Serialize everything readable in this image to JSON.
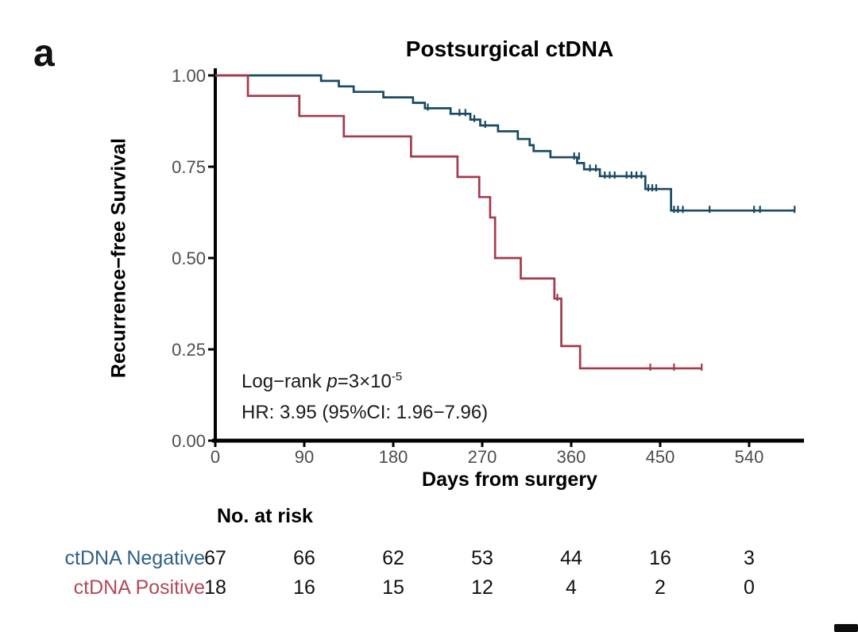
{
  "panel_label": "a",
  "chart_data": {
    "type": "line",
    "subtype": "kaplan-meier-step-curve",
    "title": "Postsurgical ctDNA",
    "xlabel": "Days from surgery",
    "ylabel": "Recurrence−free Survival",
    "xlim": [
      0,
      595
    ],
    "ylim": [
      0,
      1
    ],
    "xticks": [
      0,
      90,
      180,
      270,
      360,
      450,
      540
    ],
    "ytick_values": [
      1.0,
      0.75,
      0.5,
      0.25,
      0.0
    ],
    "ytick_labels": [
      "1.00",
      "0.75",
      "0.50",
      "0.25",
      "0.00"
    ],
    "grid": false,
    "legend_position": "none",
    "annotations": {
      "logrank_prefix": "Log−rank ",
      "logrank_p": "p",
      "logrank_value": "=3×10",
      "logrank_exponent": "-5",
      "hr_text": "HR: 3.95 (95%CI: 1.96−7.96)"
    },
    "series": [
      {
        "name": "ctDNA Negative",
        "color": "#1a4a63",
        "n_initial": 67,
        "start": [
          0,
          1.0
        ],
        "end_day": 586,
        "steps": [
          [
            107,
            0.985
          ],
          [
            125,
            0.97
          ],
          [
            140,
            0.955
          ],
          [
            170,
            0.94
          ],
          [
            200,
            0.925
          ],
          [
            212,
            0.91
          ],
          [
            238,
            0.895
          ],
          [
            258,
            0.879
          ],
          [
            268,
            0.863
          ],
          [
            286,
            0.847
          ],
          [
            306,
            0.826
          ],
          [
            318,
            0.809
          ],
          [
            322,
            0.793
          ],
          [
            339,
            0.776
          ],
          [
            366,
            0.76
          ],
          [
            373,
            0.743
          ],
          [
            389,
            0.724
          ],
          [
            435,
            0.689
          ],
          [
            461,
            0.63
          ]
        ],
        "censors": [
          [
            215,
            0.91
          ],
          [
            247,
            0.895
          ],
          [
            253,
            0.895
          ],
          [
            262,
            0.879
          ],
          [
            273,
            0.863
          ],
          [
            363,
            0.776
          ],
          [
            368,
            0.776
          ],
          [
            379,
            0.743
          ],
          [
            385,
            0.743
          ],
          [
            394,
            0.724
          ],
          [
            399,
            0.724
          ],
          [
            404,
            0.724
          ],
          [
            416,
            0.724
          ],
          [
            421,
            0.724
          ],
          [
            426,
            0.724
          ],
          [
            431,
            0.724
          ],
          [
            438,
            0.689
          ],
          [
            442,
            0.689
          ],
          [
            446,
            0.689
          ],
          [
            464,
            0.63
          ],
          [
            468,
            0.63
          ],
          [
            473,
            0.63
          ],
          [
            500,
            0.63
          ],
          [
            545,
            0.63
          ],
          [
            551,
            0.63
          ],
          [
            586,
            0.63
          ]
        ]
      },
      {
        "name": "ctDNA Positive",
        "color": "#a23b4b",
        "n_initial": 18,
        "start": [
          0,
          1.0
        ],
        "end_day": 492,
        "steps": [
          [
            33,
            0.944
          ],
          [
            85,
            0.889
          ],
          [
            130,
            0.833
          ],
          [
            198,
            0.778
          ],
          [
            245,
            0.722
          ],
          [
            267,
            0.667
          ],
          [
            278,
            0.611
          ],
          [
            283,
            0.5
          ],
          [
            309,
            0.444
          ],
          [
            343,
            0.389
          ],
          [
            350,
            0.259
          ],
          [
            369,
            0.198
          ]
        ],
        "censors": [
          [
            346,
            0.389
          ],
          [
            440,
            0.198
          ],
          [
            464,
            0.198
          ],
          [
            492,
            0.198
          ]
        ]
      }
    ]
  },
  "risk_table": {
    "header": "No. at risk",
    "times": [
      0,
      90,
      180,
      270,
      360,
      450,
      540
    ],
    "rows": [
      {
        "label": "ctDNA Negative",
        "label_color": "#2d6186",
        "counts": [
          67,
          66,
          62,
          53,
          44,
          16,
          3
        ]
      },
      {
        "label": "ctDNA Positive",
        "label_color": "#b04a59",
        "counts": [
          18,
          16,
          15,
          12,
          4,
          2,
          0
        ]
      }
    ]
  }
}
